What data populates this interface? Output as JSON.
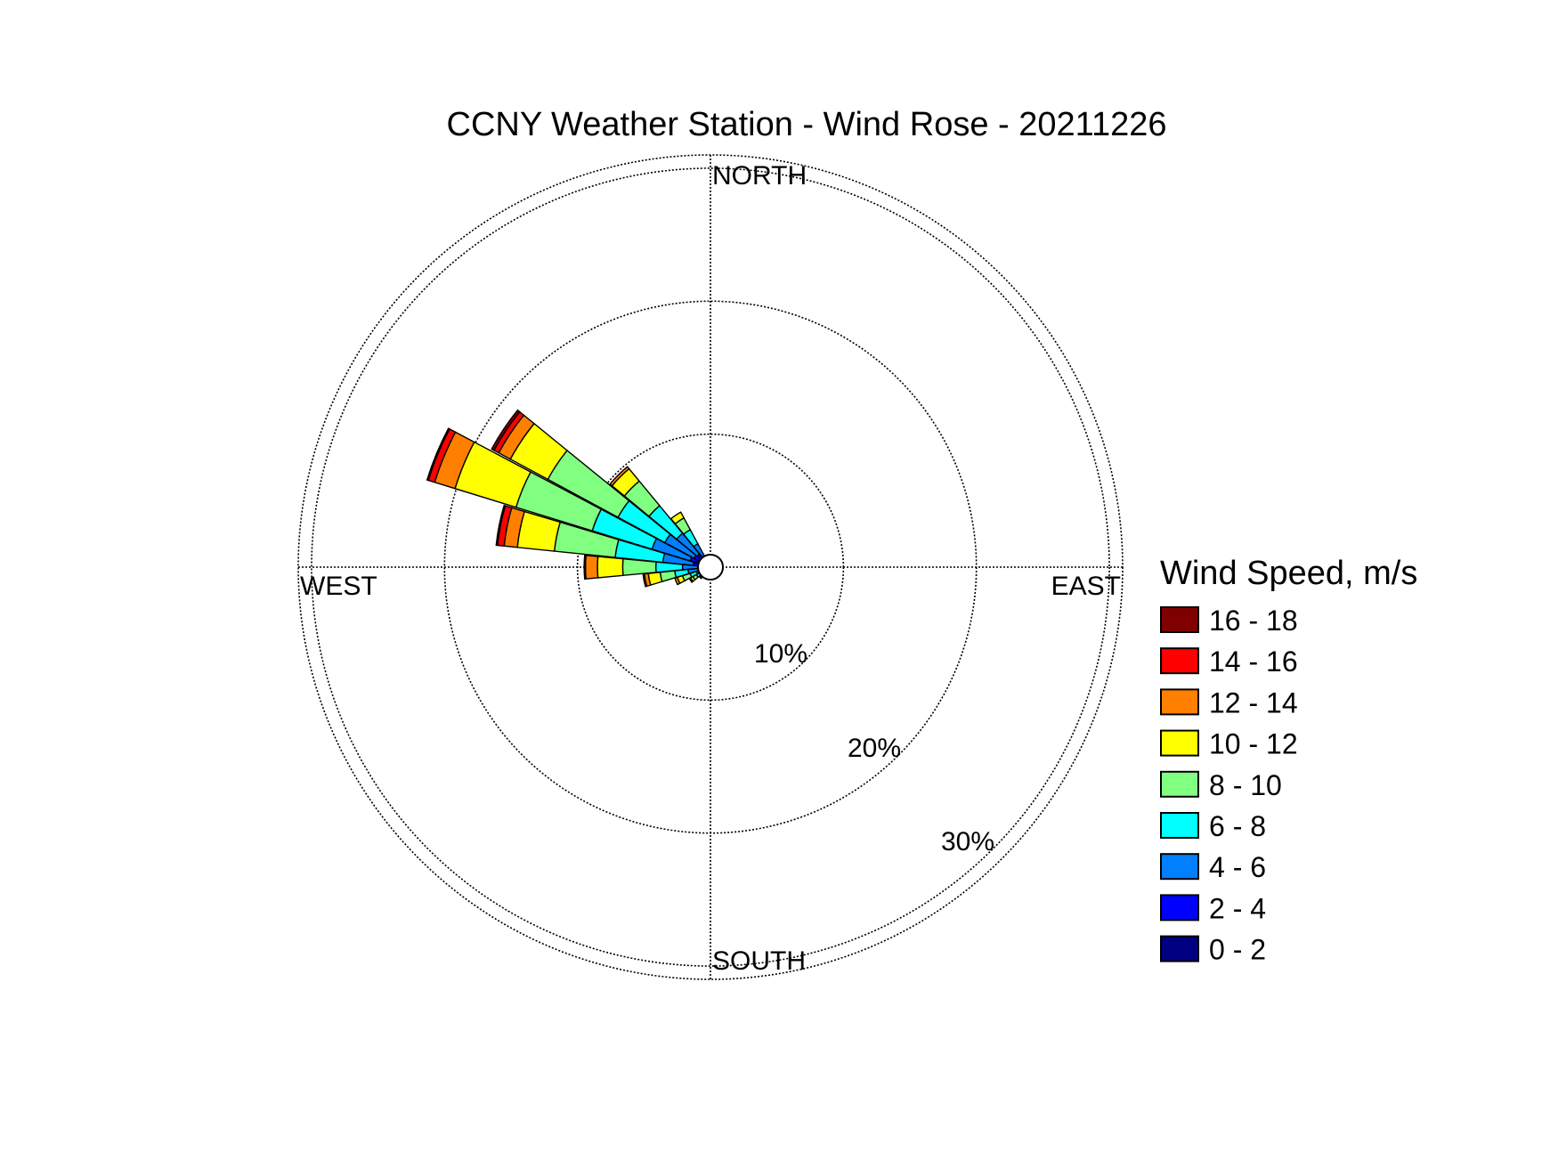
{
  "chart_data": {
    "type": "polar-stacked-bar",
    "title": "CCNY Weather Station - Wind Rose - 20211226",
    "direction_labels": {
      "north": "NORTH",
      "east": "EAST",
      "south": "SOUTH",
      "west": "WEST"
    },
    "radial_ticks": [
      {
        "value": 10,
        "label": "10%"
      },
      {
        "value": 20,
        "label": "20%"
      },
      {
        "value": 30,
        "label": "30%"
      }
    ],
    "rmax": 31,
    "grid": true,
    "legend": {
      "title": "Wind Speed, m/s",
      "placement": "right",
      "bins": [
        {
          "label": "16 - 18",
          "color": "#800000"
        },
        {
          "label": "14 - 16",
          "color": "#ff0000"
        },
        {
          "label": "12 - 14",
          "color": "#ff8000"
        },
        {
          "label": "10 - 12",
          "color": "#ffff00"
        },
        {
          "label": "8 - 10",
          "color": "#80ff80"
        },
        {
          "label": "6 - 8",
          "color": "#00ffff"
        },
        {
          "label": "4 - 6",
          "color": "#0080ff"
        },
        {
          "label": "2 - 4",
          "color": "#0000ff"
        },
        {
          "label": "0 - 2",
          "color": "#000080"
        }
      ]
    },
    "bin_order_inner_to_outer": [
      "0 - 2",
      "2 - 4",
      "4 - 6",
      "6 - 8",
      "8 - 10",
      "10 - 12",
      "12 - 14",
      "14 - 16",
      "16 - 18"
    ],
    "sectors": [
      {
        "direction_deg": 247.5,
        "values": [
          0.4,
          0.3,
          0.4,
          0.5,
          0.6,
          0.4,
          0.2,
          0.0,
          0.0
        ]
      },
      {
        "direction_deg": 258.75,
        "values": [
          0.4,
          0.5,
          0.8,
          1.0,
          1.1,
          0.9,
          0.3,
          0.1,
          0.0
        ]
      },
      {
        "direction_deg": 270.0,
        "values": [
          0.4,
          0.5,
          1.2,
          2.0,
          2.5,
          1.9,
          0.9,
          0.1,
          0.0
        ]
      },
      {
        "direction_deg": 281.25,
        "values": [
          0.4,
          0.9,
          2.3,
          3.6,
          4.6,
          2.8,
          1.0,
          0.5,
          0.1
        ]
      },
      {
        "direction_deg": 292.5,
        "values": [
          0.4,
          1.2,
          3.0,
          4.7,
          6.0,
          4.8,
          1.6,
          0.5,
          0.1
        ]
      },
      {
        "direction_deg": 303.75,
        "values": [
          0.4,
          1.0,
          2.5,
          4.0,
          6.0,
          3.2,
          1.0,
          0.4,
          0.2
        ]
      },
      {
        "direction_deg": 315.0,
        "values": [
          0.4,
          0.9,
          2.0,
          2.7,
          2.4,
          1.2,
          0.2,
          0.0,
          0.0
        ]
      },
      {
        "direction_deg": 326.25,
        "values": [
          0.4,
          0.6,
          1.0,
          1.2,
          1.0,
          0.5,
          0.0,
          0.0,
          0.0
        ]
      },
      {
        "direction_deg": 236.25,
        "values": [
          0.4,
          0.2,
          0.3,
          0.3,
          0.3,
          0.2,
          0.1,
          0.0,
          0.0
        ]
      },
      {
        "direction_deg": 225.0,
        "values": [
          0.3,
          0.1,
          0.2,
          0.2,
          0.2,
          0.1,
          0.0,
          0.0,
          0.0
        ]
      }
    ]
  }
}
